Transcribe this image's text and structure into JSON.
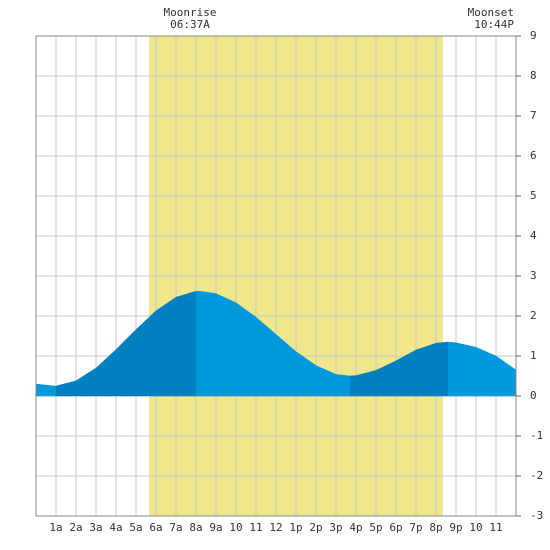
{
  "chart_data": {
    "type": "area",
    "x": [
      0,
      0.9,
      1,
      2,
      3,
      4,
      5,
      6,
      7,
      8,
      8.2,
      9,
      10,
      11,
      12,
      13,
      14,
      15,
      15.7,
      16,
      17,
      18,
      19,
      20,
      20.6,
      21,
      22,
      23,
      24
    ],
    "values": [
      0.3,
      0.25,
      0.25,
      0.38,
      0.7,
      1.16,
      1.66,
      2.13,
      2.47,
      2.62,
      2.62,
      2.56,
      2.33,
      1.97,
      1.54,
      1.11,
      0.76,
      0.54,
      0.5,
      0.51,
      0.64,
      0.88,
      1.15,
      1.32,
      1.35,
      1.33,
      1.22,
      1.0,
      0.65
    ],
    "rising_color": "#0080c0",
    "falling_color": "#0099dd",
    "daylight": [
      5.65,
      20.35
    ],
    "daylight_color": "#f0e68c",
    "xlim": [
      0,
      24
    ],
    "xticks": [
      {
        "value": 1,
        "label": "1a"
      },
      {
        "value": 2,
        "label": "2a"
      },
      {
        "value": 3,
        "label": "3a"
      },
      {
        "value": 4,
        "label": "4a"
      },
      {
        "value": 5,
        "label": "5a"
      },
      {
        "value": 6,
        "label": "6a"
      },
      {
        "value": 7,
        "label": "7a"
      },
      {
        "value": 8,
        "label": "8a"
      },
      {
        "value": 9,
        "label": "9a"
      },
      {
        "value": 10,
        "label": "10"
      },
      {
        "value": 11,
        "label": "11"
      },
      {
        "value": 12,
        "label": "12"
      },
      {
        "value": 13,
        "label": "1p"
      },
      {
        "value": 14,
        "label": "2p"
      },
      {
        "value": 15,
        "label": "3p"
      },
      {
        "value": 16,
        "label": "4p"
      },
      {
        "value": 17,
        "label": "5p"
      },
      {
        "value": 18,
        "label": "6p"
      },
      {
        "value": 19,
        "label": "7p"
      },
      {
        "value": 20,
        "label": "8p"
      },
      {
        "value": 21,
        "label": "9p"
      },
      {
        "value": 22,
        "label": "10"
      },
      {
        "value": 23,
        "label": "11"
      }
    ],
    "ylim": [
      -3,
      9
    ],
    "yticks": [
      -3,
      -2,
      -1,
      0,
      1,
      2,
      3,
      4,
      5,
      6,
      7,
      8,
      9
    ],
    "grid": true,
    "annotations": [
      {
        "title": "Moonrise",
        "time": "06:37A"
      },
      {
        "title": "Moonset",
        "time": "10:44P"
      }
    ]
  }
}
